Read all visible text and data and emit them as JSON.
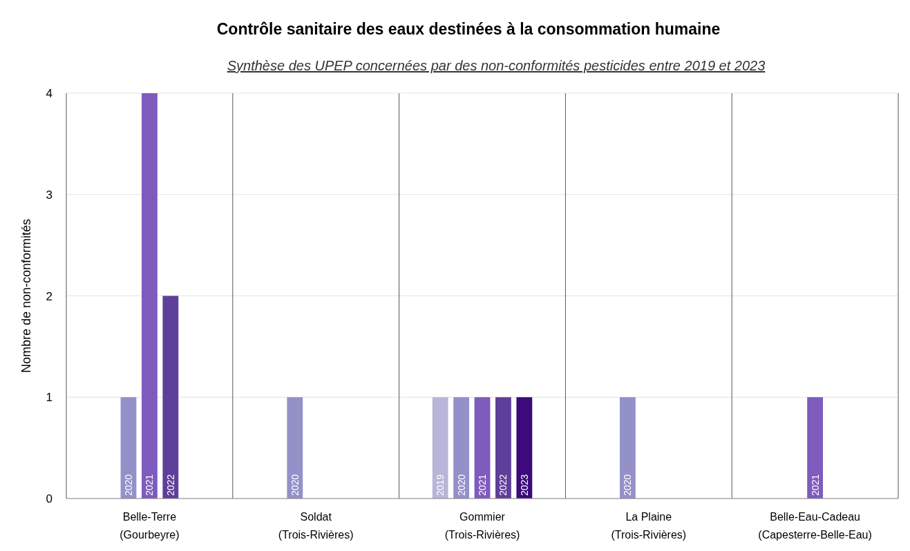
{
  "chart_data": {
    "type": "bar",
    "title": "Contrôle sanitaire des eaux destinées à la consommation humaine",
    "subtitle": "Synthèse des UPEP concernées par des non-conformités pesticides entre 2019 et 2023",
    "ylabel": "Nombre de non-conformités",
    "categories": [
      "Belle-Terre\n(Gourbeyre)",
      "Soldat\n(Trois-Rivières)",
      "Gommier\n(Trois-Rivières)",
      "La Plaine\n(Trois-Rivières)",
      "Belle-Eau-Cadeau\n(Capesterre-Belle-Eau)"
    ],
    "series": [
      {
        "name": "2019",
        "color": "#b8b5d8",
        "values": [
          null,
          null,
          1,
          null,
          null
        ]
      },
      {
        "name": "2020",
        "color": "#9490c8",
        "values": [
          1,
          1,
          1,
          1,
          null
        ]
      },
      {
        "name": "2021",
        "color": "#7e5bbd",
        "values": [
          4,
          null,
          1,
          null,
          1
        ]
      },
      {
        "name": "2022",
        "color": "#5e3f9a",
        "values": [
          2,
          null,
          1,
          null,
          null
        ]
      },
      {
        "name": "2023",
        "color": "#3c0a7a",
        "values": [
          null,
          null,
          1,
          null,
          null
        ]
      }
    ],
    "ylim": [
      0,
      4
    ],
    "yticks": [
      0,
      1,
      2,
      3,
      4
    ],
    "grid": "y"
  }
}
